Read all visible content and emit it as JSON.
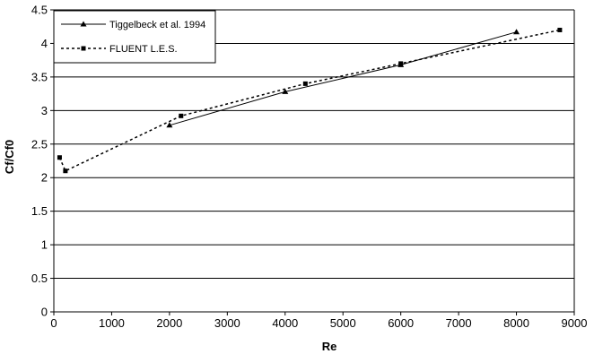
{
  "chart_data": {
    "type": "line",
    "xlabel": "Re",
    "ylabel": "Cf/Cf0",
    "xlim": [
      0,
      9000
    ],
    "ylim": [
      0,
      4.5
    ],
    "x_ticks": [
      "0",
      "1000",
      "2000",
      "3000",
      "4000",
      "5000",
      "6000",
      "7000",
      "8000",
      "9000"
    ],
    "y_ticks": [
      "0",
      "0.5",
      "1",
      "1.5",
      "2",
      "2.5",
      "3",
      "3.5",
      "4",
      "4.5"
    ],
    "grid": "horizontal",
    "legend_position": "top-left",
    "series": [
      {
        "name": "Tiggelbeck et al. 1994",
        "marker": "triangle",
        "line_style": "solid",
        "x": [
          2000,
          4000,
          6000,
          8000
        ],
        "y": [
          2.78,
          3.28,
          3.68,
          4.17
        ]
      },
      {
        "name": "FLUENT L.E.S.",
        "marker": "square",
        "line_style": "dashed",
        "x": [
          100,
          200,
          2200,
          4350,
          6000,
          8750
        ],
        "y": [
          2.3,
          2.1,
          2.92,
          3.4,
          3.7,
          4.2
        ]
      }
    ]
  }
}
